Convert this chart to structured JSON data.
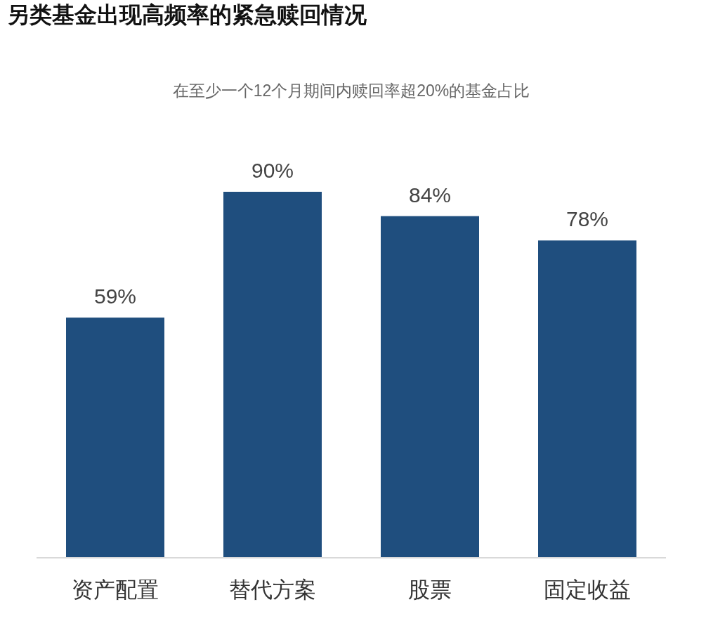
{
  "chart_data": {
    "type": "bar",
    "title": "另类基金出现高频率的紧急赎回情况",
    "subtitle": "在至少一个12个月期间内赎回率超20%的基金占比",
    "categories": [
      "资产配置",
      "替代方案",
      "股票",
      "固定收益"
    ],
    "values": [
      59,
      90,
      84,
      78
    ],
    "value_labels": [
      "59%",
      "90%",
      "84%",
      "78%"
    ],
    "color": "#1f4e7e"
  }
}
